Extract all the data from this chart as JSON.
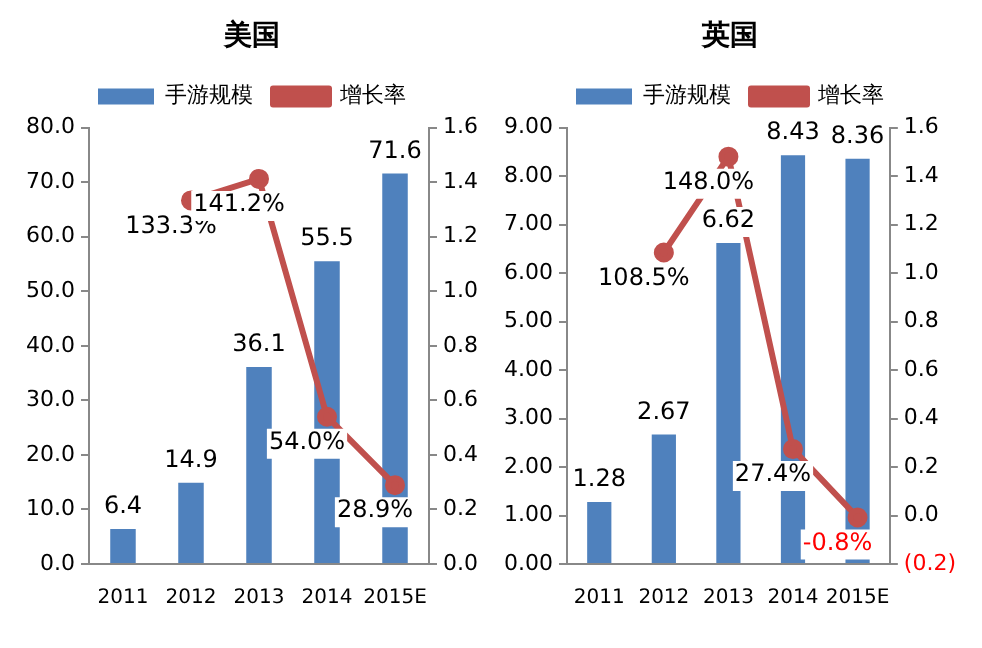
{
  "chart_data": [
    {
      "type": "bar",
      "title": "美国",
      "categories": [
        "2011",
        "2012",
        "2013",
        "2014",
        "2015E"
      ],
      "legend": "top",
      "series": [
        {
          "name": "手游规模",
          "color": "#4f81bd",
          "values": [
            6.4,
            14.9,
            36.1,
            55.5,
            71.6
          ],
          "value_labels": [
            "6.4",
            "14.9",
            "36.1",
            "55.5",
            "71.6"
          ]
        },
        {
          "name": "增长率",
          "type": "line",
          "axis": "y2",
          "color": "#c0504d",
          "marker": "circle",
          "values": [
            null,
            1.333,
            1.412,
            0.54,
            0.289
          ],
          "value_labels": [
            null,
            "133.3%",
            "141.2%",
            "54.0%",
            "28.9%"
          ]
        }
      ],
      "ylim": [
        0,
        80
      ],
      "yticks": [
        {
          "value": 0,
          "label": "0.0"
        },
        {
          "value": 10,
          "label": "10.0"
        },
        {
          "value": 20,
          "label": "20.0"
        },
        {
          "value": 30,
          "label": "30.0"
        },
        {
          "value": 40,
          "label": "40.0"
        },
        {
          "value": 50,
          "label": "50.0"
        },
        {
          "value": 60,
          "label": "60.0"
        },
        {
          "value": 70,
          "label": "70.0"
        },
        {
          "value": 80,
          "label": "80.0"
        }
      ],
      "y2lim": [
        0,
        1.6
      ],
      "y2ticks": [
        {
          "value": 0,
          "label": "0.0"
        },
        0.2,
        0.4,
        0.6,
        0.8,
        {
          "value": 1,
          "label": "1.0"
        },
        1.2,
        1.4,
        1.6
      ]
    },
    {
      "type": "bar",
      "title": "英国",
      "categories": [
        "2011",
        "2012",
        "2013",
        "2014",
        "2015E"
      ],
      "legend": "top",
      "series": [
        {
          "name": "手游规模",
          "color": "#4f81bd",
          "values": [
            1.28,
            2.67,
            6.62,
            8.43,
            8.36
          ],
          "value_labels": [
            "1.28",
            "2.67",
            "6.62",
            "8.43",
            "8.36"
          ]
        },
        {
          "name": "增长率",
          "type": "line",
          "axis": "y2",
          "color": "#c0504d",
          "marker": "circle",
          "values": [
            null,
            1.085,
            1.48,
            0.274,
            -0.008
          ],
          "value_labels": [
            null,
            "108.5%",
            "148.0%",
            "27.4%",
            "-0.8%"
          ]
        }
      ],
      "ylim": [
        0,
        9
      ],
      "yticks": [
        {
          "value": 0,
          "label": "0.00"
        },
        {
          "value": 1,
          "label": "1.00"
        },
        {
          "value": 2,
          "label": "2.00"
        },
        {
          "value": 3,
          "label": "3.00"
        },
        {
          "value": 4,
          "label": "4.00"
        },
        {
          "value": 5,
          "label": "5.00"
        },
        {
          "value": 6,
          "label": "6.00"
        },
        {
          "value": 7,
          "label": "7.00"
        },
        {
          "value": 8,
          "label": "8.00"
        },
        {
          "value": 9,
          "label": "9.00"
        }
      ],
      "y2lim": [
        -0.2,
        1.6
      ],
      "y2ticks": [
        {
          "value": -0.2,
          "label": "(0.2)"
        },
        {
          "value": 0,
          "label": "0.0"
        },
        0.2,
        0.4,
        0.6,
        0.8,
        {
          "value": 1,
          "label": "1.0"
        },
        1.2,
        1.4,
        1.6
      ]
    }
  ]
}
